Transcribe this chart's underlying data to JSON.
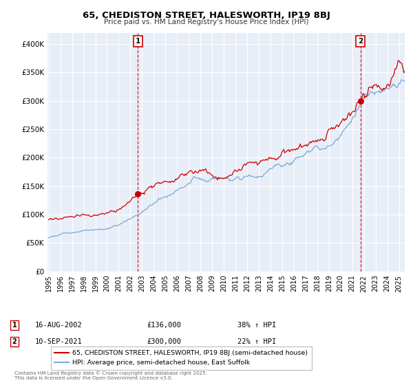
{
  "title": "65, CHEDISTON STREET, HALESWORTH, IP19 8BJ",
  "subtitle": "Price paid vs. HM Land Registry's House Price Index (HPI)",
  "background_color": "#ffffff",
  "plot_bg_color": "#e8eef8",
  "grid_color": "#ffffff",
  "red_line_color": "#cc0000",
  "blue_line_color": "#7aaad0",
  "marker1_x": 2002.63,
  "marker1_y": 136000,
  "marker2_x": 2021.71,
  "marker2_y": 300000,
  "vline_color": "#cc0000",
  "legend_label_red": "65, CHEDISTON STREET, HALESWORTH, IP19 8BJ (semi-detached house)",
  "legend_label_blue": "HPI: Average price, semi-detached house, East Suffolk",
  "annotation1_date": "16-AUG-2002",
  "annotation1_price": "£136,000",
  "annotation1_hpi": "38% ↑ HPI",
  "annotation2_date": "10-SEP-2021",
  "annotation2_price": "£300,000",
  "annotation2_hpi": "22% ↑ HPI",
  "footer": "Contains HM Land Registry data © Crown copyright and database right 2025.\nThis data is licensed under the Open Government Licence v3.0.",
  "ylim": [
    0,
    420000
  ],
  "yticks": [
    0,
    50000,
    100000,
    150000,
    200000,
    250000,
    300000,
    350000,
    400000
  ],
  "ytick_labels": [
    "£0",
    "£50K",
    "£100K",
    "£150K",
    "£200K",
    "£250K",
    "£300K",
    "£350K",
    "£400K"
  ],
  "xlim_start": 1994.9,
  "xlim_end": 2025.5
}
